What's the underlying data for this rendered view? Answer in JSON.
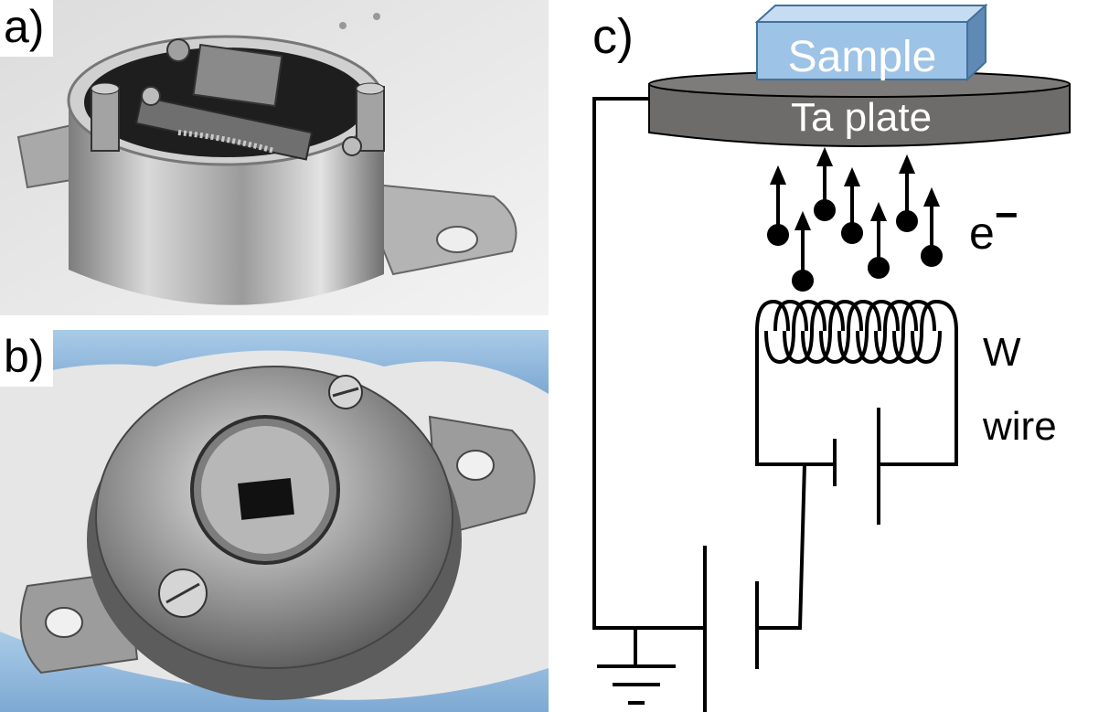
{
  "panels": {
    "a": {
      "label": "a)"
    },
    "b": {
      "label": "b)"
    },
    "c": {
      "label": "c)"
    }
  },
  "schematic": {
    "sample_label": "Sample",
    "plate_label": "Ta plate",
    "electron_label": "e",
    "electron_superscript": "−",
    "wire_label_line1": "W",
    "wire_label_line2": "wire"
  },
  "colors": {
    "sample_fill": "#9dc3e6",
    "plate_fill": "#6e6b6b",
    "glove": "#8fb8dc",
    "steel": "#b9b9b9"
  }
}
